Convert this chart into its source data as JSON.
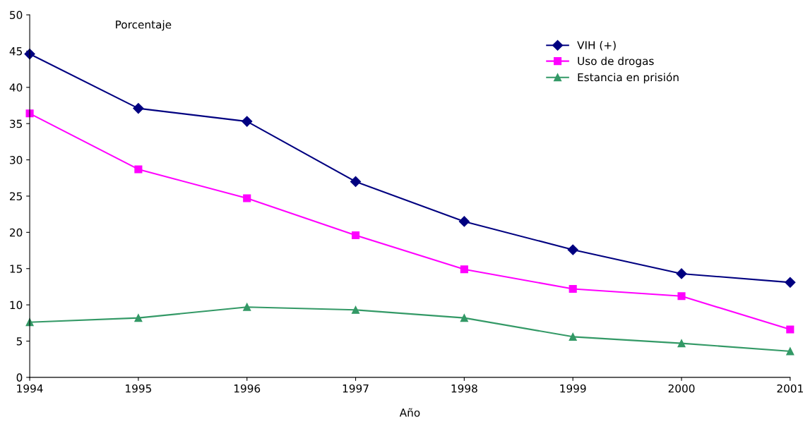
{
  "chart_data": {
    "type": "line",
    "xlabel": "Año",
    "ylabel": "Porcentaje",
    "x": [
      1994,
      1995,
      1996,
      1997,
      1998,
      1999,
      2000,
      2001
    ],
    "xlim": [
      1994,
      2001
    ],
    "xticks": [
      1994,
      1995,
      1996,
      1997,
      1998,
      1999,
      2000,
      2001
    ],
    "ylim": [
      0,
      50
    ],
    "yticks": [
      0,
      5,
      10,
      15,
      20,
      25,
      30,
      35,
      40,
      45,
      50
    ],
    "grid": false,
    "legend": "top right",
    "series": [
      {
        "name": "VIH (+)",
        "color": "#000080",
        "marker": "diamond",
        "values": [
          44.6,
          37.1,
          35.3,
          27.0,
          21.5,
          17.6,
          14.3,
          13.1
        ]
      },
      {
        "name": "Uso de drogas",
        "color": "#ff00ff",
        "marker": "square",
        "values": [
          36.4,
          28.7,
          24.7,
          19.6,
          14.9,
          12.2,
          11.2,
          6.6
        ]
      },
      {
        "name": "Estancia en prisión",
        "color": "#339966",
        "marker": "triangle",
        "values": [
          7.6,
          8.2,
          9.7,
          9.3,
          8.2,
          5.6,
          4.7,
          3.6
        ]
      }
    ]
  }
}
